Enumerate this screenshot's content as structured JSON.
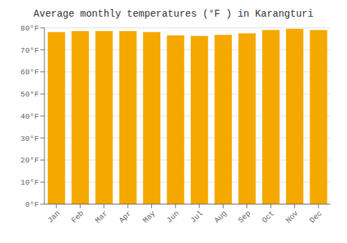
{
  "chart_data": {
    "type": "bar",
    "title": "Average monthly temperatures (°F ) in Karangturi",
    "categories": [
      "Jan",
      "Feb",
      "Mar",
      "Apr",
      "May",
      "Jun",
      "Jul",
      "Aug",
      "Sep",
      "Oct",
      "Nov",
      "Dec"
    ],
    "values": [
      78.0,
      78.5,
      78.5,
      78.5,
      78.0,
      76.5,
      76.3,
      76.8,
      77.5,
      79.0,
      79.5,
      79.0
    ],
    "color": "#F5A800",
    "ylim": [
      0,
      80
    ],
    "yticks": [
      {
        "value": 0,
        "label": "0°F"
      },
      {
        "value": 10,
        "label": "10°F"
      },
      {
        "value": 20,
        "label": "20°F"
      },
      {
        "value": 30,
        "label": "30°F"
      },
      {
        "value": 40,
        "label": "40°F"
      },
      {
        "value": 50,
        "label": "50°F"
      },
      {
        "value": 60,
        "label": "60°F"
      },
      {
        "value": 70,
        "label": "70°F"
      },
      {
        "value": 80,
        "label": "80°F"
      }
    ],
    "grid": true
  }
}
